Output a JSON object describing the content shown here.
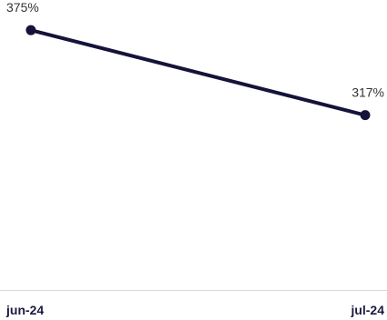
{
  "chart_data": {
    "type": "line",
    "categories": [
      "jun-24",
      "jul-24"
    ],
    "series": [
      {
        "values": [
          375,
          317
        ],
        "data_labels": [
          "375%",
          "317%"
        ],
        "color": "#15133a"
      }
    ],
    "ylim": [
      220,
      390
    ],
    "grid": false,
    "axis_color": "#d9d9d9"
  }
}
